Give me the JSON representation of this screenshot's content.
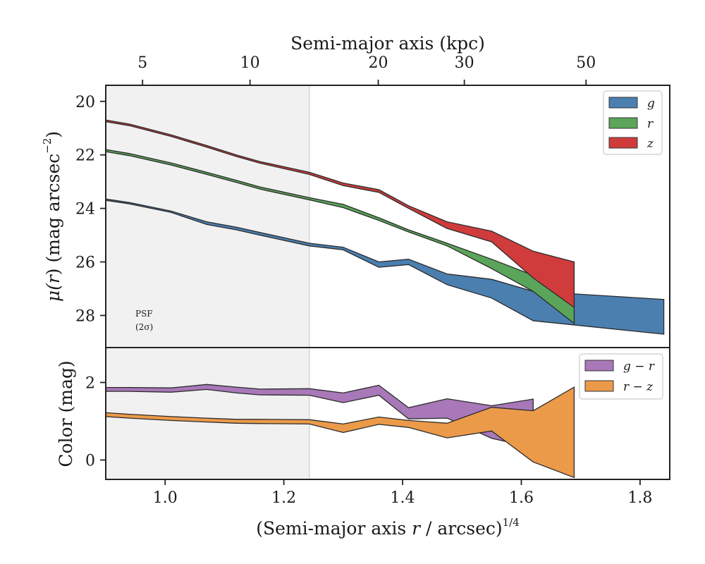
{
  "chart_data": [
    {
      "type": "area",
      "panel": "surface-brightness",
      "ylabel": "μ(r) (mag arcsec⁻²)",
      "xlabel": "(Semi-major axis r / arcsec)^1/4",
      "top_xlabel": "Semi-major axis (kpc)",
      "xlim": [
        0.9,
        1.85
      ],
      "ylim": [
        29.2,
        19.4
      ],
      "y_inverted": true,
      "xticks": [
        1.0,
        1.2,
        1.4,
        1.6,
        1.8
      ],
      "xtick_labels": [
        "1.0",
        "1.2",
        "1.4",
        "1.6",
        "1.8"
      ],
      "yticks": [
        20,
        22,
        24,
        26,
        28
      ],
      "ytick_labels": [
        "20",
        "22",
        "24",
        "26",
        "28"
      ],
      "top_xticks_kpc": [
        5,
        10,
        20,
        30,
        50
      ],
      "top_xtick_labels": [
        "5",
        "10",
        "20",
        "30",
        "50"
      ],
      "top_xtick_positions": [
        0.962,
        1.143,
        1.359,
        1.504,
        1.709
      ],
      "shaded_region": {
        "x_from": 0.9,
        "x_to": 1.243,
        "label_lines": [
          "PSF",
          "(2σ)"
        ]
      },
      "legend_position": "top-right",
      "series": [
        {
          "name": "g",
          "color": "#4a7fb0",
          "x": [
            0.9,
            0.94,
            1.01,
            1.07,
            1.12,
            1.16,
            1.243,
            1.3,
            1.36,
            1.41,
            1.475,
            1.55,
            1.62,
            1.84
          ],
          "y_upper": [
            23.65,
            23.78,
            24.1,
            24.5,
            24.7,
            24.9,
            25.3,
            25.45,
            26.0,
            25.9,
            26.45,
            26.65,
            27.1,
            27.4
          ],
          "y_lower": [
            23.7,
            23.83,
            24.15,
            24.6,
            24.8,
            25.0,
            25.4,
            25.55,
            26.2,
            26.1,
            26.85,
            27.35,
            28.2,
            28.7
          ]
        },
        {
          "name": "r",
          "color": "#5aa55a",
          "x": [
            0.9,
            0.94,
            1.01,
            1.07,
            1.12,
            1.16,
            1.243,
            1.3,
            1.36,
            1.41,
            1.475,
            1.55,
            1.62,
            1.689
          ],
          "y_upper": [
            21.8,
            21.95,
            22.3,
            22.65,
            22.95,
            23.2,
            23.6,
            23.85,
            24.35,
            24.8,
            25.3,
            25.9,
            26.5,
            27.2
          ],
          "y_lower": [
            21.88,
            22.03,
            22.38,
            22.73,
            23.03,
            23.28,
            23.68,
            23.97,
            24.45,
            24.88,
            25.4,
            26.25,
            27.1,
            28.3
          ]
        },
        {
          "name": "z",
          "color": "#d03c3c",
          "x": [
            0.9,
            0.94,
            1.01,
            1.07,
            1.12,
            1.16,
            1.243,
            1.3,
            1.36,
            1.41,
            1.475,
            1.55,
            1.62,
            1.689
          ],
          "y_upper": [
            20.7,
            20.85,
            21.25,
            21.65,
            22.0,
            22.25,
            22.65,
            23.05,
            23.3,
            23.9,
            24.5,
            24.85,
            25.6,
            26.0
          ],
          "y_lower": [
            20.76,
            20.91,
            21.31,
            21.71,
            22.06,
            22.31,
            22.73,
            23.15,
            23.4,
            24.0,
            24.75,
            25.25,
            26.6,
            27.7
          ]
        }
      ]
    },
    {
      "type": "area",
      "panel": "color",
      "ylabel": "Color (mag)",
      "xlim": [
        0.9,
        1.85
      ],
      "ylim": [
        -0.5,
        2.9
      ],
      "yticks": [
        0,
        2
      ],
      "ytick_labels": [
        "0",
        "2"
      ],
      "legend_position": "top-right",
      "series": [
        {
          "name": "g − r",
          "color": "#a878b8",
          "x": [
            0.9,
            0.94,
            1.01,
            1.07,
            1.12,
            1.16,
            1.243,
            1.3,
            1.36,
            1.41,
            1.475,
            1.55,
            1.62
          ],
          "y_upper": [
            1.87,
            1.87,
            1.86,
            1.95,
            1.88,
            1.83,
            1.84,
            1.73,
            1.93,
            1.35,
            1.58,
            1.4,
            1.57
          ],
          "y_lower": [
            1.77,
            1.77,
            1.75,
            1.82,
            1.73,
            1.68,
            1.67,
            1.48,
            1.67,
            1.06,
            1.08,
            0.56,
            0.32
          ]
        },
        {
          "name": "r − z",
          "color": "#eb9a4a",
          "x": [
            0.9,
            0.94,
            1.01,
            1.07,
            1.12,
            1.16,
            1.243,
            1.3,
            1.36,
            1.41,
            1.475,
            1.55,
            1.62,
            1.689
          ],
          "y_upper": [
            1.22,
            1.18,
            1.12,
            1.08,
            1.05,
            1.05,
            1.04,
            0.93,
            1.11,
            1.02,
            0.95,
            1.36,
            1.27,
            1.88
          ],
          "y_lower": [
            1.12,
            1.08,
            1.02,
            0.98,
            0.95,
            0.94,
            0.93,
            0.71,
            0.92,
            0.84,
            0.57,
            0.75,
            -0.05,
            -0.45
          ]
        }
      ]
    }
  ],
  "legend_top": [
    {
      "label": "g"
    },
    {
      "label": "r"
    },
    {
      "label": "z"
    }
  ],
  "legend_bottom": [
    {
      "label": "g − r"
    },
    {
      "label": "r − z"
    }
  ],
  "labels": {
    "top_axis_title": "Semi-major axis (kpc)",
    "bottom_axis_title_main": "(Semi-major axis ",
    "bottom_axis_title_var": "r",
    "bottom_axis_title_rest": " / arcsec)",
    "bottom_axis_title_exp": "1/4",
    "top_ylabel_mu": "μ(",
    "top_ylabel_r": "r",
    "top_ylabel_rest": ") (mag arcsec",
    "top_ylabel_exp": "−2",
    "top_ylabel_close": ")",
    "bottom_ylabel": "Color (mag)",
    "psf_line1": "PSF",
    "psf_line2": "(2σ)"
  }
}
